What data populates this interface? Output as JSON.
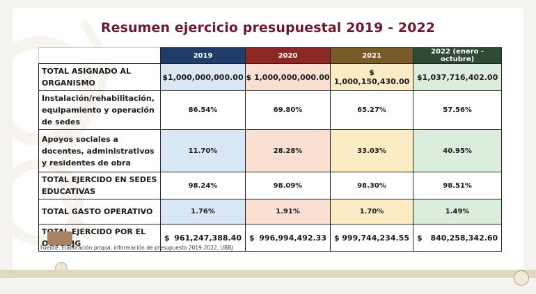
{
  "title": "Resumen ejercicio presupuestal 2019 - 2022",
  "columns": [
    "2019",
    "2020",
    "2021",
    "2022 (enero - octubre)"
  ],
  "rows": [
    {
      "label": "TOTAL ASIGNADO AL ORGANISMO",
      "values": [
        "$1,000,000,000.00",
        "$ 1,000,000,000.00",
        "$ 1,000,150,430.00",
        "1,037,716,402.00"
      ],
      "currency_split": [
        false,
        false,
        false,
        true
      ]
    },
    {
      "label": "Instalación/rehabilitación, equipamiento y operación de sedes",
      "values": [
        "86.54%",
        "69.80%",
        "65.27%",
        "57.56%"
      ]
    },
    {
      "label": "Apoyos sociales a docentes, administrativos y residentes de obra",
      "values": [
        "11.70%",
        "28.28%",
        "33.03%",
        "40.95%"
      ]
    },
    {
      "label": "TOTAL EJERCIDO EN SEDES EDUCATIVAS",
      "values": [
        "98.24%",
        "98.09%",
        "98.30%",
        "98.51%"
      ]
    },
    {
      "label": "TOTAL GASTO OPERATIVO",
      "values": [
        "1.76%",
        "1.91%",
        "1.70%",
        "1.49%"
      ]
    },
    {
      "label": "TOTAL EJERCIDO POR EL OCUBBJG",
      "values": [
        "961,247,388.40",
        "996,994,492.33",
        "999,744,234.55",
        "840,258,342.60"
      ],
      "currency_split": [
        true,
        true,
        true,
        true
      ]
    }
  ],
  "currency_symbol": "$",
  "source": "Fuente: Elaboración propia, información de presupuesto 2019-2022, UBBJ",
  "colors": {
    "title": "#6b1a2b",
    "c2019": "#1f3d68",
    "c2020": "#8b2a22",
    "c2021": "#7b5a2a",
    "c2022": "#2f4b34"
  }
}
